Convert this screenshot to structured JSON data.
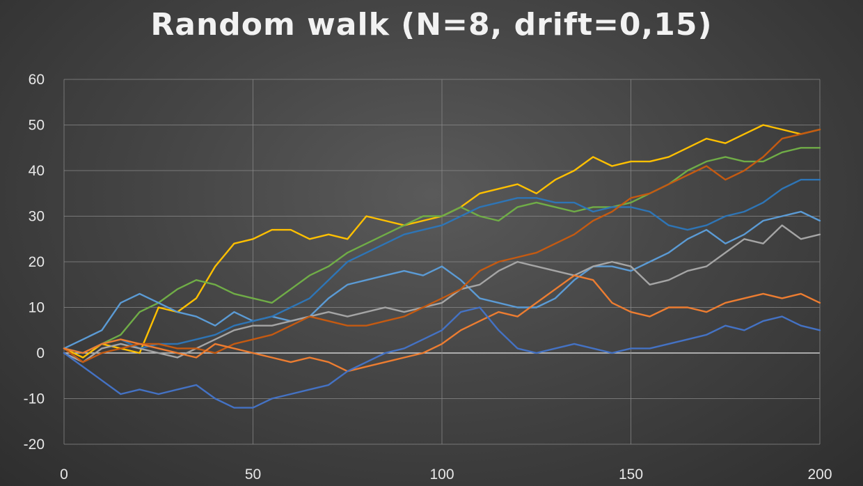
{
  "chart_data": {
    "type": "line",
    "title": "Random walk (N=8, drift=0,15)",
    "xlabel": "",
    "ylabel": "",
    "xlim": [
      0,
      200
    ],
    "ylim": [
      -20,
      60
    ],
    "x_ticks": [
      0,
      50,
      100,
      150,
      200
    ],
    "y_ticks": [
      -20,
      -10,
      0,
      10,
      20,
      30,
      40,
      50,
      60
    ],
    "x_tick_labels": [
      "0",
      "50",
      "100",
      "150",
      "200"
    ],
    "y_tick_labels": [
      "-20",
      "-10",
      "0",
      "10",
      "20",
      "30",
      "40",
      "50",
      "60"
    ],
    "grid": true,
    "legend": "none",
    "series": [
      {
        "color": "#FFC000",
        "points": [
          [
            0,
            1
          ],
          [
            5,
            -1
          ],
          [
            10,
            2
          ],
          [
            15,
            1
          ],
          [
            20,
            0
          ],
          [
            25,
            10
          ],
          [
            30,
            9
          ],
          [
            35,
            12
          ],
          [
            40,
            19
          ],
          [
            45,
            24
          ],
          [
            50,
            25
          ],
          [
            55,
            27
          ],
          [
            60,
            27
          ],
          [
            65,
            25
          ],
          [
            70,
            26
          ],
          [
            75,
            25
          ],
          [
            80,
            30
          ],
          [
            85,
            29
          ],
          [
            90,
            28
          ],
          [
            95,
            29
          ],
          [
            100,
            30
          ],
          [
            105,
            32
          ],
          [
            110,
            35
          ],
          [
            115,
            36
          ],
          [
            120,
            37
          ],
          [
            125,
            35
          ],
          [
            130,
            38
          ],
          [
            135,
            40
          ],
          [
            140,
            43
          ],
          [
            145,
            41
          ],
          [
            150,
            42
          ],
          [
            155,
            42
          ],
          [
            160,
            43
          ],
          [
            165,
            45
          ],
          [
            170,
            47
          ],
          [
            175,
            46
          ],
          [
            180,
            48
          ],
          [
            185,
            50
          ],
          [
            190,
            49
          ],
          [
            195,
            48
          ],
          [
            200,
            49
          ]
        ]
      },
      {
        "color": "#70AD47",
        "points": [
          [
            0,
            1
          ],
          [
            5,
            0
          ],
          [
            10,
            2
          ],
          [
            15,
            4
          ],
          [
            20,
            9
          ],
          [
            25,
            11
          ],
          [
            30,
            14
          ],
          [
            35,
            16
          ],
          [
            40,
            15
          ],
          [
            45,
            13
          ],
          [
            50,
            12
          ],
          [
            55,
            11
          ],
          [
            60,
            14
          ],
          [
            65,
            17
          ],
          [
            70,
            19
          ],
          [
            75,
            22
          ],
          [
            80,
            24
          ],
          [
            85,
            26
          ],
          [
            90,
            28
          ],
          [
            95,
            30
          ],
          [
            100,
            30
          ],
          [
            105,
            32
          ],
          [
            110,
            30
          ],
          [
            115,
            29
          ],
          [
            120,
            32
          ],
          [
            125,
            33
          ],
          [
            130,
            32
          ],
          [
            135,
            31
          ],
          [
            140,
            32
          ],
          [
            145,
            32
          ],
          [
            150,
            33
          ],
          [
            155,
            35
          ],
          [
            160,
            37
          ],
          [
            165,
            40
          ],
          [
            170,
            42
          ],
          [
            175,
            43
          ],
          [
            180,
            42
          ],
          [
            185,
            42
          ],
          [
            190,
            44
          ],
          [
            195,
            45
          ],
          [
            200,
            45
          ]
        ]
      },
      {
        "color": "#5B9BD5",
        "points": [
          [
            0,
            1
          ],
          [
            5,
            3
          ],
          [
            10,
            5
          ],
          [
            15,
            11
          ],
          [
            20,
            13
          ],
          [
            25,
            11
          ],
          [
            30,
            9
          ],
          [
            35,
            8
          ],
          [
            40,
            6
          ],
          [
            45,
            9
          ],
          [
            50,
            7
          ],
          [
            55,
            8
          ],
          [
            60,
            7
          ],
          [
            65,
            8
          ],
          [
            70,
            12
          ],
          [
            75,
            15
          ],
          [
            80,
            16
          ],
          [
            85,
            17
          ],
          [
            90,
            18
          ],
          [
            95,
            17
          ],
          [
            100,
            19
          ],
          [
            105,
            16
          ],
          [
            110,
            12
          ],
          [
            115,
            11
          ],
          [
            120,
            10
          ],
          [
            125,
            10
          ],
          [
            130,
            12
          ],
          [
            135,
            16
          ],
          [
            140,
            19
          ],
          [
            145,
            19
          ],
          [
            150,
            18
          ],
          [
            155,
            20
          ],
          [
            160,
            22
          ],
          [
            165,
            25
          ],
          [
            170,
            27
          ],
          [
            175,
            24
          ],
          [
            180,
            26
          ],
          [
            185,
            29
          ],
          [
            190,
            30
          ],
          [
            195,
            31
          ],
          [
            200,
            29
          ]
        ]
      },
      {
        "color": "#2E75B6",
        "points": [
          [
            0,
            1
          ],
          [
            5,
            0
          ],
          [
            10,
            2
          ],
          [
            15,
            3
          ],
          [
            20,
            1
          ],
          [
            25,
            2
          ],
          [
            30,
            2
          ],
          [
            35,
            3
          ],
          [
            40,
            4
          ],
          [
            45,
            6
          ],
          [
            50,
            7
          ],
          [
            55,
            8
          ],
          [
            60,
            10
          ],
          [
            65,
            12
          ],
          [
            70,
            16
          ],
          [
            75,
            20
          ],
          [
            80,
            22
          ],
          [
            85,
            24
          ],
          [
            90,
            26
          ],
          [
            95,
            27
          ],
          [
            100,
            28
          ],
          [
            105,
            30
          ],
          [
            110,
            32
          ],
          [
            115,
            33
          ],
          [
            120,
            34
          ],
          [
            125,
            34
          ],
          [
            130,
            33
          ],
          [
            135,
            33
          ],
          [
            140,
            31
          ],
          [
            145,
            32
          ],
          [
            150,
            32
          ],
          [
            155,
            31
          ],
          [
            160,
            28
          ],
          [
            165,
            27
          ],
          [
            170,
            28
          ],
          [
            175,
            30
          ],
          [
            180,
            31
          ],
          [
            185,
            33
          ],
          [
            190,
            36
          ],
          [
            195,
            38
          ],
          [
            200,
            38
          ]
        ]
      },
      {
        "color": "#A5A5A5",
        "points": [
          [
            0,
            0
          ],
          [
            5,
            -2
          ],
          [
            10,
            1
          ],
          [
            15,
            2
          ],
          [
            20,
            1
          ],
          [
            25,
            0
          ],
          [
            30,
            -1
          ],
          [
            35,
            1
          ],
          [
            40,
            3
          ],
          [
            45,
            5
          ],
          [
            50,
            6
          ],
          [
            55,
            6
          ],
          [
            60,
            7
          ],
          [
            65,
            8
          ],
          [
            70,
            9
          ],
          [
            75,
            8
          ],
          [
            80,
            9
          ],
          [
            85,
            10
          ],
          [
            90,
            9
          ],
          [
            95,
            10
          ],
          [
            100,
            11
          ],
          [
            105,
            14
          ],
          [
            110,
            15
          ],
          [
            115,
            18
          ],
          [
            120,
            20
          ],
          [
            125,
            19
          ],
          [
            130,
            18
          ],
          [
            135,
            17
          ],
          [
            140,
            19
          ],
          [
            145,
            20
          ],
          [
            150,
            19
          ],
          [
            155,
            15
          ],
          [
            160,
            16
          ],
          [
            165,
            18
          ],
          [
            170,
            19
          ],
          [
            175,
            22
          ],
          [
            180,
            25
          ],
          [
            185,
            24
          ],
          [
            190,
            28
          ],
          [
            195,
            25
          ],
          [
            200,
            26
          ]
        ]
      },
      {
        "color": "#C55A11",
        "points": [
          [
            0,
            1
          ],
          [
            5,
            -2
          ],
          [
            10,
            0
          ],
          [
            15,
            1
          ],
          [
            20,
            2
          ],
          [
            25,
            2
          ],
          [
            30,
            1
          ],
          [
            35,
            1
          ],
          [
            40,
            0
          ],
          [
            45,
            2
          ],
          [
            50,
            3
          ],
          [
            55,
            4
          ],
          [
            60,
            6
          ],
          [
            65,
            8
          ],
          [
            70,
            7
          ],
          [
            75,
            6
          ],
          [
            80,
            6
          ],
          [
            85,
            7
          ],
          [
            90,
            8
          ],
          [
            95,
            10
          ],
          [
            100,
            12
          ],
          [
            105,
            14
          ],
          [
            110,
            18
          ],
          [
            115,
            20
          ],
          [
            120,
            21
          ],
          [
            125,
            22
          ],
          [
            130,
            24
          ],
          [
            135,
            26
          ],
          [
            140,
            29
          ],
          [
            145,
            31
          ],
          [
            150,
            34
          ],
          [
            155,
            35
          ],
          [
            160,
            37
          ],
          [
            165,
            39
          ],
          [
            170,
            41
          ],
          [
            175,
            38
          ],
          [
            180,
            40
          ],
          [
            185,
            43
          ],
          [
            190,
            47
          ],
          [
            195,
            48
          ],
          [
            200,
            49
          ]
        ]
      },
      {
        "color": "#ED7D31",
        "points": [
          [
            0,
            1
          ],
          [
            5,
            0
          ],
          [
            10,
            2
          ],
          [
            15,
            3
          ],
          [
            20,
            2
          ],
          [
            25,
            1
          ],
          [
            30,
            0
          ],
          [
            35,
            -1
          ],
          [
            40,
            2
          ],
          [
            45,
            1
          ],
          [
            50,
            0
          ],
          [
            55,
            -1
          ],
          [
            60,
            -2
          ],
          [
            65,
            -1
          ],
          [
            70,
            -2
          ],
          [
            75,
            -4
          ],
          [
            80,
            -3
          ],
          [
            85,
            -2
          ],
          [
            90,
            -1
          ],
          [
            95,
            0
          ],
          [
            100,
            2
          ],
          [
            105,
            5
          ],
          [
            110,
            7
          ],
          [
            115,
            9
          ],
          [
            120,
            8
          ],
          [
            125,
            11
          ],
          [
            130,
            14
          ],
          [
            135,
            17
          ],
          [
            140,
            16
          ],
          [
            145,
            11
          ],
          [
            150,
            9
          ],
          [
            155,
            8
          ],
          [
            160,
            10
          ],
          [
            165,
            10
          ],
          [
            170,
            9
          ],
          [
            175,
            11
          ],
          [
            180,
            12
          ],
          [
            185,
            13
          ],
          [
            190,
            12
          ],
          [
            195,
            13
          ],
          [
            200,
            11
          ]
        ]
      },
      {
        "color": "#4472C4",
        "points": [
          [
            0,
            0
          ],
          [
            5,
            -3
          ],
          [
            10,
            -6
          ],
          [
            15,
            -9
          ],
          [
            20,
            -8
          ],
          [
            25,
            -9
          ],
          [
            30,
            -8
          ],
          [
            35,
            -7
          ],
          [
            40,
            -10
          ],
          [
            45,
            -12
          ],
          [
            50,
            -12
          ],
          [
            55,
            -10
          ],
          [
            60,
            -9
          ],
          [
            65,
            -8
          ],
          [
            70,
            -7
          ],
          [
            75,
            -4
          ],
          [
            80,
            -2
          ],
          [
            85,
            0
          ],
          [
            90,
            1
          ],
          [
            95,
            3
          ],
          [
            100,
            5
          ],
          [
            105,
            9
          ],
          [
            110,
            10
          ],
          [
            115,
            5
          ],
          [
            120,
            1
          ],
          [
            125,
            0
          ],
          [
            130,
            1
          ],
          [
            135,
            2
          ],
          [
            140,
            1
          ],
          [
            145,
            0
          ],
          [
            150,
            1
          ],
          [
            155,
            1
          ],
          [
            160,
            2
          ],
          [
            165,
            3
          ],
          [
            170,
            4
          ],
          [
            175,
            6
          ],
          [
            180,
            5
          ],
          [
            185,
            7
          ],
          [
            190,
            8
          ],
          [
            195,
            6
          ],
          [
            200,
            5
          ]
        ]
      }
    ]
  }
}
